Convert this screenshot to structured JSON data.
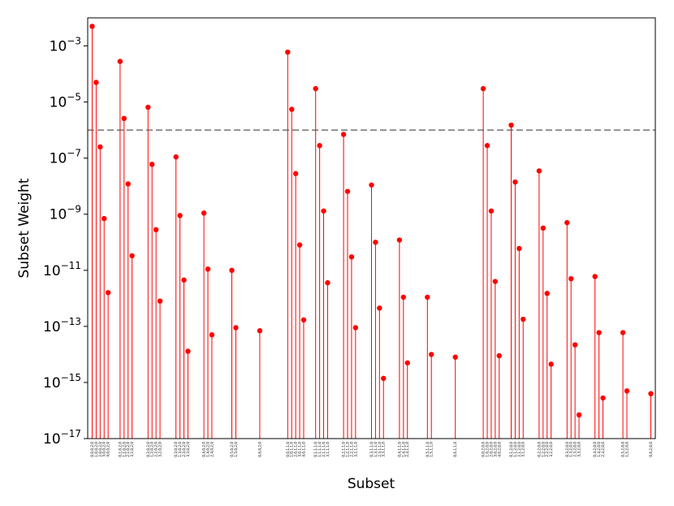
{
  "chart_data": {
    "type": "scatter",
    "style": "stem",
    "xlabel": "Subset",
    "ylabel": "Subset Weight",
    "yscale": "log",
    "ylim": [
      1e-17,
      0.01
    ],
    "yticks": [
      {
        "value": 0.001,
        "base": "10",
        "exp": "−3"
      },
      {
        "value": 1e-05,
        "base": "10",
        "exp": "−5"
      },
      {
        "value": 1e-07,
        "base": "10",
        "exp": "−7"
      },
      {
        "value": 1e-09,
        "base": "10",
        "exp": "−9"
      },
      {
        "value": 1e-11,
        "base": "10",
        "exp": "−11"
      },
      {
        "value": 1e-13,
        "base": "10",
        "exp": "−13"
      },
      {
        "value": 1e-15,
        "base": "10",
        "exp": "−15"
      },
      {
        "value": 1e-17,
        "base": "10",
        "exp": "−17"
      }
    ],
    "threshold": 1e-06,
    "marker_color": "#ff0000",
    "stem_color": "#ff0000",
    "threshold_color": "#555555",
    "grid": false,
    "points": [
      {
        "x": 0,
        "label": "0,0,0,2,0",
        "y": 0.005
      },
      {
        "x": 1,
        "label": "1,0,0,2,0",
        "y": 5e-05
      },
      {
        "x": 2,
        "label": "2,0,0,2,0",
        "y": 2.5e-07
      },
      {
        "x": 3,
        "label": "3,0,0,2,0",
        "y": 7e-10
      },
      {
        "x": 4,
        "label": "4,0,0,2,0",
        "y": 1.6e-12
      },
      {
        "x": 7,
        "label": "0,1,0,2,0",
        "y": 0.00028
      },
      {
        "x": 8,
        "label": "1,1,0,2,0",
        "y": 2.6e-06
      },
      {
        "x": 9,
        "label": "2,1,0,2,0",
        "y": 1.2e-08
      },
      {
        "x": 10,
        "label": "3,1,0,2,0",
        "y": 3.3e-11
      },
      {
        "x": 14,
        "label": "0,2,0,2,0",
        "y": 6.5e-06
      },
      {
        "x": 15,
        "label": "1,2,0,2,0",
        "y": 6e-08
      },
      {
        "x": 16,
        "label": "2,2,0,2,0",
        "y": 2.8e-10
      },
      {
        "x": 17,
        "label": "3,2,0,2,0",
        "y": 8e-13
      },
      {
        "x": 21,
        "label": "0,3,0,2,0",
        "y": 1.1e-07
      },
      {
        "x": 22,
        "label": "1,3,0,2,0",
        "y": 9e-10
      },
      {
        "x": 23,
        "label": "2,3,0,2,0",
        "y": 4.5e-12
      },
      {
        "x": 24,
        "label": "3,3,0,2,0",
        "y": 1.3e-14
      },
      {
        "x": 28,
        "label": "0,4,0,2,0",
        "y": 1.1e-09
      },
      {
        "x": 29,
        "label": "1,4,0,2,0",
        "y": 1.1e-11
      },
      {
        "x": 30,
        "label": "2,4,0,2,0",
        "y": 5e-14
      },
      {
        "x": 35,
        "label": "0,5,0,2,0",
        "y": 1e-11
      },
      {
        "x": 36,
        "label": "1,5,0,2,0",
        "y": 9e-14
      },
      {
        "x": 42,
        "label": "0,6,0,2,0",
        "y": 7e-14
      },
      {
        "x": 49,
        "label": "0,0,1,1,0",
        "y": 0.0006
      },
      {
        "x": 50,
        "label": "1,0,1,1,0",
        "y": 5.5e-06
      },
      {
        "x": 51,
        "label": "2,0,1,1,0",
        "y": 2.8e-08
      },
      {
        "x": 52,
        "label": "3,0,1,1,0",
        "y": 8e-11
      },
      {
        "x": 53,
        "label": "4,0,1,1,0",
        "y": 1.7e-13
      },
      {
        "x": 56,
        "label": "0,1,1,1,0",
        "y": 3e-05
      },
      {
        "x": 57,
        "label": "1,1,1,1,0",
        "y": 2.8e-07
      },
      {
        "x": 58,
        "label": "2,1,1,1,0",
        "y": 1.3e-09
      },
      {
        "x": 59,
        "label": "3,1,1,1,0",
        "y": 3.6e-12
      },
      {
        "x": 63,
        "label": "0,2,1,1,0",
        "y": 7e-07
      },
      {
        "x": 64,
        "label": "1,2,1,1,0",
        "y": 6.5e-09
      },
      {
        "x": 65,
        "label": "2,2,1,1,0",
        "y": 3e-11
      },
      {
        "x": 66,
        "label": "3,2,1,1,0",
        "y": 9e-14
      },
      {
        "x": 70,
        "label": "0,3,1,1,0",
        "y": 1.1e-08
      },
      {
        "x": 71,
        "label": "1,3,1,1,0",
        "y": 1e-10
      },
      {
        "x": 72,
        "label": "2,3,1,1,0",
        "y": 4.5e-13
      },
      {
        "x": 73,
        "label": "3,3,1,1,0",
        "y": 1.4e-15
      },
      {
        "x": 77,
        "label": "0,4,1,1,0",
        "y": 1.2e-10
      },
      {
        "x": 78,
        "label": "1,4,1,1,0",
        "y": 1.1e-12
      },
      {
        "x": 79,
        "label": "2,4,1,1,0",
        "y": 5e-15
      },
      {
        "x": 84,
        "label": "0,5,1,1,0",
        "y": 1.1e-12
      },
      {
        "x": 85,
        "label": "1,5,1,1,0",
        "y": 1e-14
      },
      {
        "x": 91,
        "label": "0,6,1,1,0",
        "y": 8e-15
      },
      {
        "x": 98,
        "label": "0,0,2,0,0",
        "y": 3e-05
      },
      {
        "x": 99,
        "label": "1,0,2,0,0",
        "y": 2.8e-07
      },
      {
        "x": 100,
        "label": "2,0,2,0,0",
        "y": 1.3e-09
      },
      {
        "x": 101,
        "label": "3,0,2,0,0",
        "y": 4e-12
      },
      {
        "x": 102,
        "label": "4,0,2,0,0",
        "y": 9e-15
      },
      {
        "x": 105,
        "label": "0,1,2,0,0",
        "y": 1.5e-06
      },
      {
        "x": 106,
        "label": "1,1,2,0,0",
        "y": 1.4e-08
      },
      {
        "x": 107,
        "label": "2,1,2,0,0",
        "y": 6e-11
      },
      {
        "x": 108,
        "label": "3,1,2,0,0",
        "y": 1.8e-13
      },
      {
        "x": 112,
        "label": "0,2,2,0,0",
        "y": 3.5e-08
      },
      {
        "x": 113,
        "label": "1,2,2,0,0",
        "y": 3.2e-10
      },
      {
        "x": 114,
        "label": "2,2,2,0,0",
        "y": 1.5e-12
      },
      {
        "x": 115,
        "label": "3,2,2,0,0",
        "y": 4.5e-15
      },
      {
        "x": 119,
        "label": "0,3,2,0,0",
        "y": 5e-10
      },
      {
        "x": 120,
        "label": "1,3,2,0,0",
        "y": 5e-12
      },
      {
        "x": 121,
        "label": "2,3,2,0,0",
        "y": 2.2e-14
      },
      {
        "x": 122,
        "label": "3,3,2,0,0",
        "y": 7e-17
      },
      {
        "x": 126,
        "label": "0,4,2,0,0",
        "y": 6e-12
      },
      {
        "x": 127,
        "label": "1,4,2,0,0",
        "y": 6e-14
      },
      {
        "x": 128,
        "label": "2,4,2,0,0",
        "y": 2.8e-16
      },
      {
        "x": 133,
        "label": "0,5,2,0,0",
        "y": 6e-14
      },
      {
        "x": 134,
        "label": "1,5,2,0,0",
        "y": 5e-16
      },
      {
        "x": 140,
        "label": "0,6,2,0,0",
        "y": 4e-16
      }
    ]
  }
}
